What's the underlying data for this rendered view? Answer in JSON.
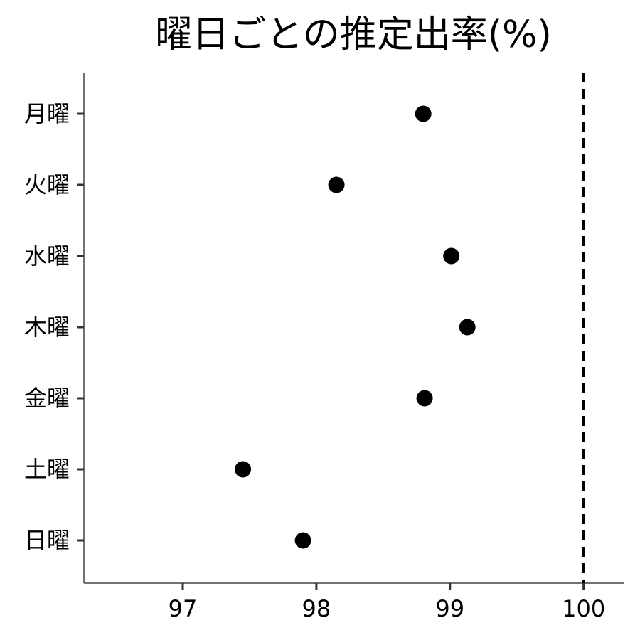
{
  "chart_data": {
    "type": "scatter",
    "title": "曜日ごとの推定出率(%)",
    "xlabel": "",
    "ylabel": "",
    "categories": [
      "月曜",
      "火曜",
      "水曜",
      "木曜",
      "金曜",
      "土曜",
      "日曜"
    ],
    "values": [
      98.8,
      98.15,
      99.01,
      99.13,
      98.81,
      97.45,
      97.9
    ],
    "x_ticks": [
      97,
      98,
      99,
      100
    ],
    "xlim": [
      96.26,
      100.3
    ],
    "reference_line": {
      "x": 100,
      "style": "dashed"
    },
    "grid": false,
    "legend": "none",
    "colors": {
      "point": "#000000",
      "reference_line": "#000000"
    }
  }
}
